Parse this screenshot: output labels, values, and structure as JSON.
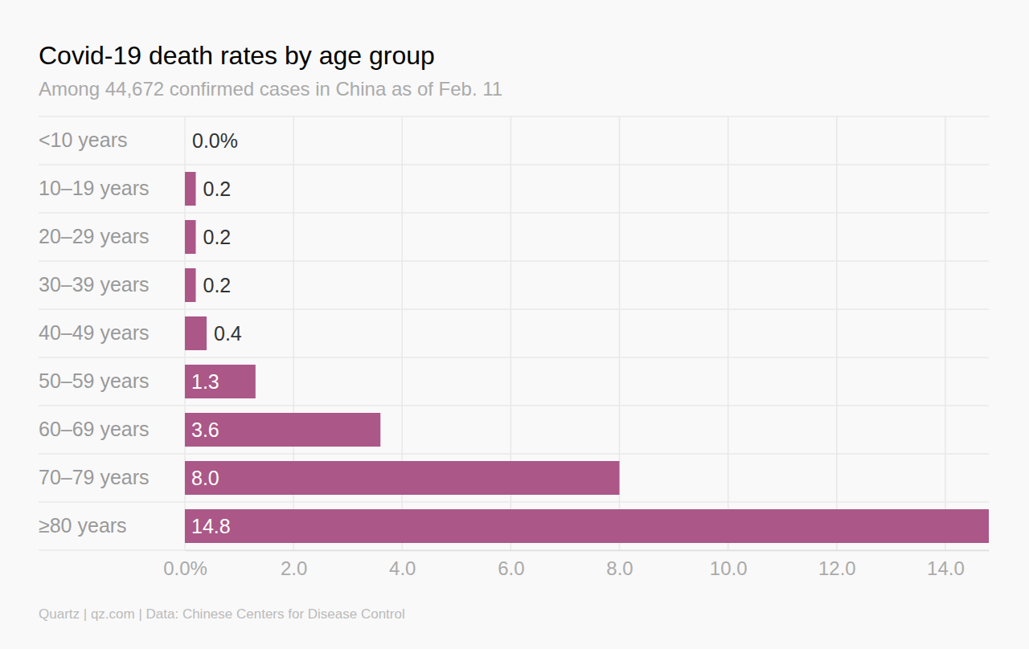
{
  "chart_data": {
    "type": "bar",
    "orientation": "horizontal",
    "title": "Covid-19 death rates by age group",
    "subtitle": "Among 44,672 confirmed cases in China as of Feb. 11",
    "source": "Quartz | qz.com | Data: Chinese Centers for Disease Control",
    "categories": [
      "<10 years",
      "10–19 years",
      "20–29 years",
      "30–39 years",
      "40–49 years",
      "50–59 years",
      "60–69 years",
      "70–79 years",
      "≥80 years"
    ],
    "values": [
      0,
      0.2,
      0.2,
      0.2,
      0.4,
      1.3,
      3.6,
      8.0,
      14.8
    ],
    "value_labels": [
      "0.0%",
      "0.2",
      "0.2",
      "0.2",
      "0.4",
      "1.3",
      "3.6",
      "8.0",
      "14.8"
    ],
    "data_labels": true,
    "color": "#ab5787",
    "xlim": [
      0,
      14.8
    ],
    "xticks": [
      {
        "value": 0,
        "label": "0.0%"
      },
      {
        "value": 2,
        "label": "2.0"
      },
      {
        "value": 4,
        "label": "4.0"
      },
      {
        "value": 6,
        "label": "6.0"
      },
      {
        "value": 8,
        "label": "8.0"
      },
      {
        "value": 10,
        "label": "10.0"
      },
      {
        "value": 12,
        "label": "12.0"
      },
      {
        "value": 14,
        "label": "14.0"
      }
    ],
    "grid": true
  }
}
